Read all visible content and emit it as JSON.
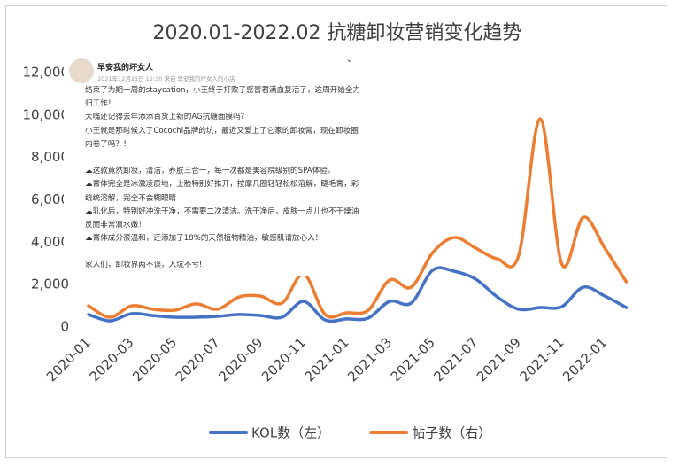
{
  "chart_data": {
    "type": "line",
    "title": "2020.01-2022.02 抗糖卸妆营销变化趋势",
    "categories": [
      "2020-01",
      null,
      "2020-03",
      null,
      "2020-05",
      null,
      "2020-07",
      null,
      "2020-09",
      null,
      "2020-11",
      null,
      "2021-01",
      null,
      "2021-03",
      null,
      "2021-05",
      null,
      "2021-07",
      null,
      "2021-09",
      null,
      "2021-11",
      null,
      "2022-01",
      null
    ],
    "series": [
      {
        "name": "KOL数（左）",
        "color": "#4472c4",
        "values": [
          590,
          290,
          630,
          540,
          460,
          460,
          500,
          590,
          540,
          460,
          1210,
          330,
          380,
          420,
          1210,
          1130,
          2680,
          2630,
          2260,
          1420,
          840,
          920,
          960,
          1880,
          1460,
          920
        ]
      },
      {
        "name": "帖子数（右）",
        "color": "#ed7d31",
        "values": [
          1000,
          460,
          1000,
          840,
          790,
          1090,
          840,
          1420,
          1460,
          1130,
          2500,
          590,
          670,
          790,
          2220,
          1880,
          3510,
          4220,
          3720,
          3220,
          3390,
          9820,
          2970,
          5180,
          3720,
          2130
        ]
      }
    ],
    "ylim": [
      0,
      12000
    ],
    "yticks": [
      0,
      {
        "value": 2000,
        "label": "2,000"
      },
      {
        "value": 4000,
        "label": "4,000"
      },
      {
        "value": 6000,
        "label": "6,000"
      },
      {
        "value": 8000,
        "label": "8,000"
      },
      {
        "value": 10000,
        "label": "10,000"
      },
      {
        "value": 12000,
        "label": "12,000"
      }
    ],
    "legend": "bottom"
  },
  "post": {
    "name": "早安我的坏女人",
    "meta": "2021年12月21日 15:30 来自 早安我的坏女人的小店",
    "lines": [
      "结束了为期一周的staycation，小王终于打败了感冒君满血复活了，这周开始全力以赴回",
      "归工作！",
      "大嘴还记得去年添添百货上新的AG抗糖面膜吗?",
      "小王就是那时候入了Cocochi品牌的坑，最近又爱上了它家的卸妆膏，现在卸妆圈如此",
      "内卷了吗？！",
      "☁这款竟然卸妆，清洁，养肤三合一，每一次都是美容院级别的SPA体验。",
      "☁膏体完全是冰激凌质地，上脸特别好推开，按摩几圈轻轻松松溶解，睫毛膏，彩妆",
      "统统溶解，完全不会糊眼睛",
      "☁乳化后，特别好冲洗干净，不需要二次清洁。洗干净后，皮肤一点儿也不干燥油腻，",
      "反而非常滴水嫩！",
      "☁膏体成分很温和，还添加了18%的天然植物精油，敏感肌请放心入！",
      "家人们，卸妆界两不误，入坑不亏!"
    ]
  }
}
